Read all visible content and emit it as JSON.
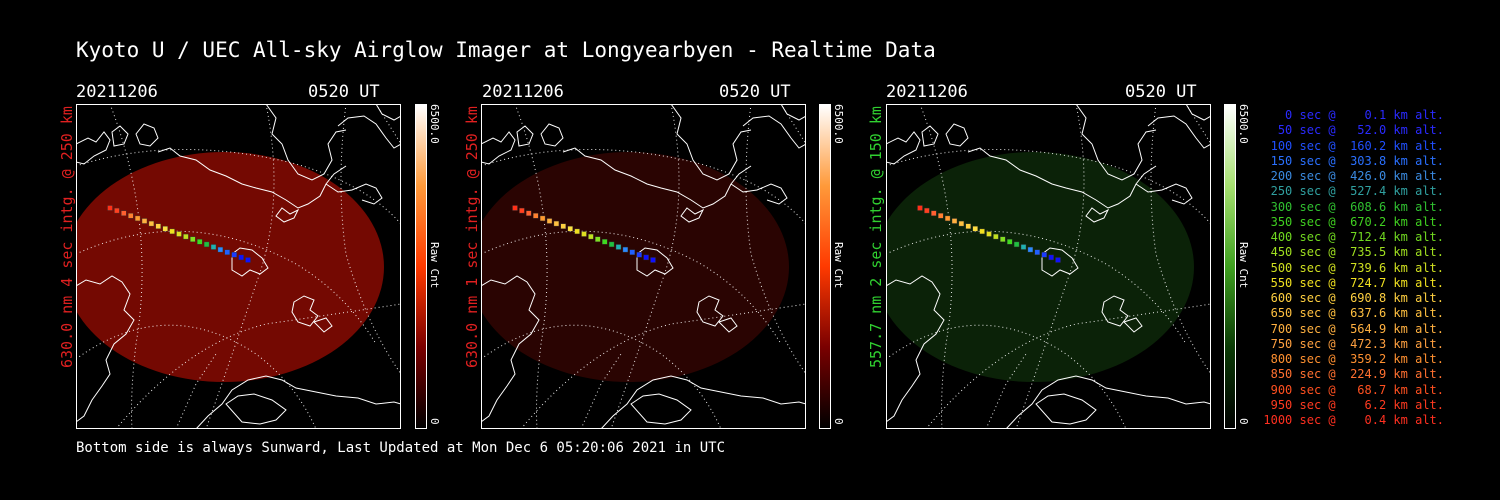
{
  "title": "Kyoto U / UEC All-sky Airglow Imager at Longyearbyen - Realtime Data",
  "footer": "Bottom side is always Sunward, Last Updated at Mon Dec  6 05:20:06 2021 in UTC",
  "panels": [
    {
      "date": "20211206",
      "time": "0520 UT",
      "label": "630.0 nm 4 sec intg. @ 250 km",
      "label_color": "#e02020",
      "image_color": "#7a0a02",
      "image_opacity": 0.95,
      "colorbar_max": "6500.0",
      "colorbar_min": "0",
      "colorbar_unit": "Raw Cnt",
      "colorbar_colors": [
        "#ffffff",
        "#ff9a3a",
        "#ff3a00",
        "#7a0000",
        "#000000"
      ]
    },
    {
      "date": "20211206",
      "time": "0520 UT",
      "label": "630.0 nm 1 sec intg. @ 250 km",
      "label_color": "#e02020",
      "image_color": "#2c0402",
      "image_opacity": 0.95,
      "colorbar_max": "6500.0",
      "colorbar_min": "0",
      "colorbar_unit": "Raw Cnt",
      "colorbar_colors": [
        "#ffffff",
        "#ff9a3a",
        "#ff3a00",
        "#7a0000",
        "#000000"
      ]
    },
    {
      "date": "20211206",
      "time": "0520 UT",
      "label": "557.7 nm 2 sec intg. @ 150 km",
      "label_color": "#30d030",
      "image_color": "#0c2408",
      "image_opacity": 0.95,
      "colorbar_max": "6500.0",
      "colorbar_min": "0",
      "colorbar_unit": "Raw Cnt",
      "colorbar_colors": [
        "#ffffff",
        "#a6e070",
        "#3fa020",
        "#0a3a05",
        "#000000"
      ]
    }
  ],
  "trajectory": {
    "colors": [
      "#1010ff",
      "#1010ff",
      "#1a3aff",
      "#2060ff",
      "#2a8aff",
      "#20b0b0",
      "#20c040",
      "#40d820",
      "#80e020",
      "#c0e020",
      "#e0e020",
      "#f0e020",
      "#ffe040",
      "#ffd040",
      "#ffc040",
      "#ffb040",
      "#ff9a30",
      "#ff8030",
      "#ff6030",
      "#ff4020",
      "#ff3018"
    ]
  },
  "legend": [
    {
      "text": "   0 sec @    0.1 km alt.",
      "color": "#2a2aff"
    },
    {
      "text": "  50 sec @   52.0 km alt.",
      "color": "#2a2aff"
    },
    {
      "text": " 100 sec @  160.2 km alt.",
      "color": "#2050ff"
    },
    {
      "text": " 150 sec @  303.8 km alt.",
      "color": "#2a70ff"
    },
    {
      "text": " 200 sec @  426.0 km alt.",
      "color": "#3a8ae0"
    },
    {
      "text": " 250 sec @  527.4 km alt.",
      "color": "#30a0a0"
    },
    {
      "text": " 300 sec @  608.6 km alt.",
      "color": "#30c030"
    },
    {
      "text": " 350 sec @  670.2 km alt.",
      "color": "#40d020"
    },
    {
      "text": " 400 sec @  712.4 km alt.",
      "color": "#70d820"
    },
    {
      "text": " 450 sec @  735.5 km alt.",
      "color": "#a0e020"
    },
    {
      "text": " 500 sec @  739.6 km alt.",
      "color": "#d0e020"
    },
    {
      "text": " 550 sec @  724.7 km alt.",
      "color": "#f0e020"
    },
    {
      "text": " 600 sec @  690.8 km alt.",
      "color": "#ffd040"
    },
    {
      "text": " 650 sec @  637.6 km alt.",
      "color": "#ffc040"
    },
    {
      "text": " 700 sec @  564.9 km alt.",
      "color": "#ffb040"
    },
    {
      "text": " 750 sec @  472.3 km alt.",
      "color": "#ffa040"
    },
    {
      "text": " 800 sec @  359.2 km alt.",
      "color": "#ff9030"
    },
    {
      "text": " 850 sec @  224.9 km alt.",
      "color": "#ff7030"
    },
    {
      "text": " 900 sec @   68.7 km alt.",
      "color": "#ff5020"
    },
    {
      "text": " 950 sec @    6.2 km alt.",
      "color": "#ff3a20"
    },
    {
      "text": "1000 sec @    0.4 km alt.",
      "color": "#ff3020"
    }
  ]
}
